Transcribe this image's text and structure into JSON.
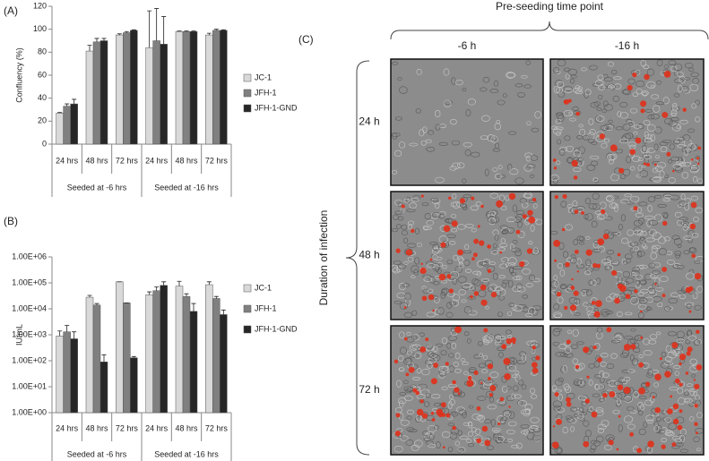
{
  "chart_data": [
    {
      "type": "bar",
      "panel_label": "(A)",
      "y_label": "Confluency (%)",
      "categories": [
        "24 hrs",
        "48 hrs",
        "72 hrs",
        "24 hrs",
        "48 hrs",
        "72 hrs"
      ],
      "groups": [
        "Seeded at -6 hrs",
        "Seeded at -16 hrs"
      ],
      "series": [
        {
          "name": "JC-1",
          "color": "#d9d9d9",
          "values": [
            27,
            81,
            95,
            84,
            98,
            95
          ],
          "errors": [
            0.5,
            5,
            1,
            32,
            0.5,
            1.5
          ]
        },
        {
          "name": "JFH-1",
          "color": "#808080",
          "values": [
            33,
            89,
            97,
            90,
            98,
            99
          ],
          "errors": [
            2,
            3,
            1,
            28,
            0.5,
            1
          ]
        },
        {
          "name": "JFH-1-GND",
          "color": "#262626",
          "values": [
            35,
            90,
            99,
            87,
            98,
            99
          ],
          "errors": [
            4,
            2,
            0.5,
            24,
            0.5,
            0.5
          ]
        }
      ],
      "ylim": [
        0,
        120
      ],
      "yticks": [
        0,
        20,
        40,
        60,
        80,
        100,
        120
      ],
      "log": false
    },
    {
      "type": "bar",
      "panel_label": "(B)",
      "y_label": "IU/mL",
      "categories": [
        "24 hrs",
        "48 hrs",
        "72 hrs",
        "24 hrs",
        "48 hrs",
        "72 hrs"
      ],
      "groups": [
        "Seeded at -6 hrs",
        "Seeded at -16 hrs"
      ],
      "series": [
        {
          "name": "JC-1",
          "color": "#d9d9d9",
          "values": [
            900,
            28000,
            110000,
            35000,
            75000,
            85000
          ],
          "errors": [
            500,
            5000,
            0,
            10000,
            40000,
            25000
          ]
        },
        {
          "name": "JFH-1",
          "color": "#808080",
          "values": [
            1300,
            14000,
            17000,
            50000,
            30000,
            25000
          ],
          "errors": [
            1000,
            2000,
            0,
            20000,
            8000,
            5000
          ]
        },
        {
          "name": "JFH-1-GND",
          "color": "#262626",
          "values": [
            700,
            90,
            130,
            80000,
            8000,
            6000
          ],
          "errors": [
            600,
            80,
            15,
            30000,
            8000,
            3000
          ]
        }
      ],
      "ylim": [
        1,
        1000000
      ],
      "yticks": [
        {
          "value": 1,
          "label": "1.00E+00"
        },
        {
          "value": 10,
          "label": "1.00E+01"
        },
        {
          "value": 100,
          "label": "1.00E+02"
        },
        {
          "value": 1000,
          "label": "1.00E+03"
        },
        {
          "value": 10000,
          "label": "1.00E+04"
        },
        {
          "value": 100000,
          "label": "1.00E+05"
        },
        {
          "value": 1000000,
          "label": "1.00E+06"
        }
      ],
      "log": true
    }
  ],
  "panel_c": {
    "label": "(C)",
    "title": "Pre-seeding time point",
    "columns": [
      "-6 h",
      "-16 h"
    ],
    "rows": [
      "24 h",
      "48 h",
      "72 h"
    ],
    "row_axis_label": "Duration of infection"
  }
}
